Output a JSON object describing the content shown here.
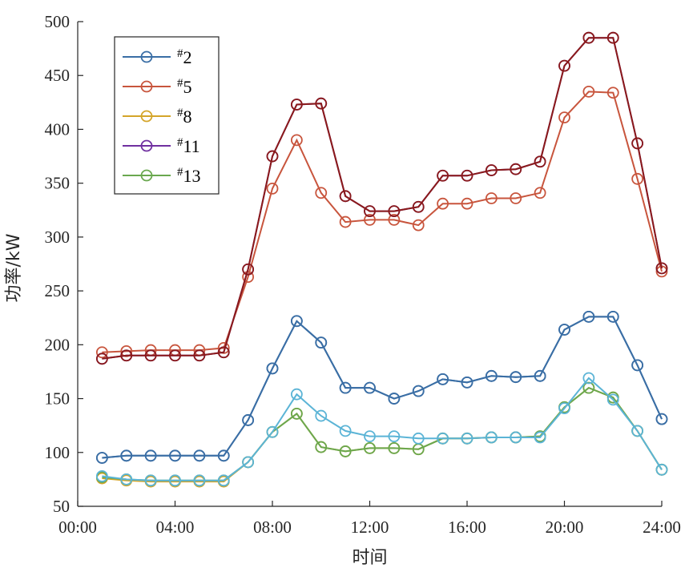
{
  "chart_data": {
    "type": "line",
    "title": "",
    "xlabel": "时间",
    "ylabel": "功率/kW",
    "xlim": [
      0,
      24
    ],
    "ylim": [
      50,
      500
    ],
    "x_ticks": [
      0,
      4,
      8,
      12,
      16,
      20,
      24
    ],
    "x_tick_labels": [
      "00:00",
      "04:00",
      "08:00",
      "12:00",
      "16:00",
      "20:00",
      "24:00"
    ],
    "y_ticks": [
      50,
      100,
      150,
      200,
      250,
      300,
      350,
      400,
      450,
      500
    ],
    "y_tick_labels": [
      "50",
      "100",
      "150",
      "200",
      "250",
      "300",
      "350",
      "400",
      "450",
      "500"
    ],
    "grid": false,
    "legend_position": "top-left",
    "x": [
      1,
      2,
      3,
      4,
      5,
      6,
      7,
      8,
      9,
      10,
      11,
      12,
      13,
      14,
      15,
      16,
      17,
      18,
      19,
      20,
      21,
      22,
      23,
      24
    ],
    "series": [
      {
        "name": "#2",
        "legend_hash": "#",
        "legend_rest": "2",
        "color": "#3a6ea5",
        "values": [
          95,
          97,
          97,
          97,
          97,
          97,
          130,
          178,
          222,
          202,
          160,
          160,
          150,
          157,
          168,
          165,
          171,
          170,
          171,
          214,
          226,
          226,
          181,
          131
        ]
      },
      {
        "name": "#5",
        "legend_hash": "#",
        "legend_rest": "5",
        "color": "#c8553d",
        "values": [
          193,
          194,
          195,
          195,
          195,
          197,
          263,
          345,
          390,
          341,
          314,
          316,
          316,
          311,
          331,
          331,
          336,
          336,
          341,
          411,
          435,
          434,
          354,
          268
        ]
      },
      {
        "name": "#8",
        "legend_hash": "#",
        "legend_rest": "8",
        "color": "#d4a52a",
        "values": [
          76,
          74,
          73,
          73,
          73,
          73,
          91,
          119,
          136,
          105,
          101,
          104,
          104,
          103,
          113,
          113,
          114,
          114,
          115,
          142,
          160,
          151,
          120,
          84
        ]
      },
      {
        "name": "#11",
        "legend_hash": "#",
        "legend_rest": "11",
        "color": "#7030a0",
        "values": [
          187,
          190,
          190,
          190,
          190,
          193,
          270,
          375,
          423,
          424,
          338,
          324,
          324,
          328,
          357,
          357,
          362,
          363,
          370,
          459,
          485,
          485,
          387,
          271
        ]
      },
      {
        "name": "#13",
        "legend_hash": "#",
        "legend_rest": "13",
        "color": "#6aa84f",
        "values": [
          77,
          75,
          74,
          74,
          74,
          74,
          91,
          119,
          136,
          105,
          101,
          104,
          104,
          103,
          113,
          113,
          114,
          114,
          115,
          142,
          160,
          151,
          120,
          84
        ]
      }
    ],
    "overlay_series": [
      {
        "color": "#8b1a1a",
        "values": [
          187,
          190,
          190,
          190,
          190,
          193,
          270,
          375,
          423,
          424,
          338,
          324,
          324,
          328,
          357,
          357,
          362,
          363,
          370,
          459,
          485,
          485,
          387,
          271
        ]
      },
      {
        "color": "#5bb4d6",
        "values": [
          78,
          75,
          74,
          74,
          74,
          74,
          91,
          119,
          154,
          134,
          120,
          115,
          115,
          113,
          113,
          113,
          114,
          114,
          114,
          141,
          169,
          149,
          120,
          84
        ]
      },
      {
        "color": "#3a6ea5",
        "values": [
          95,
          97,
          97,
          97,
          97,
          97,
          130,
          178,
          222,
          202,
          160,
          160,
          150,
          157,
          168,
          165,
          171,
          170,
          171,
          214,
          226,
          226,
          181,
          131
        ]
      }
    ]
  }
}
